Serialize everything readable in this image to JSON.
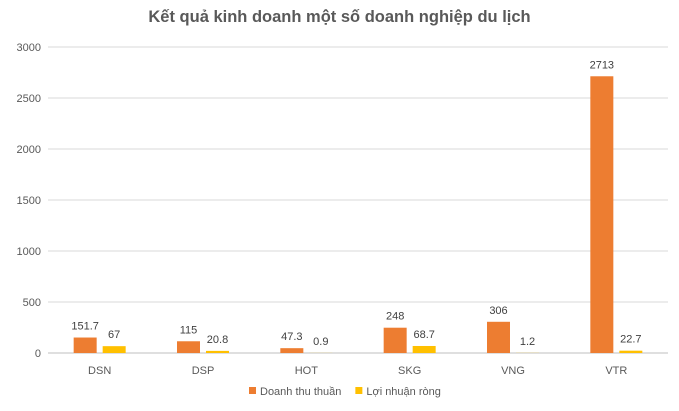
{
  "chart_data": {
    "type": "bar",
    "title": "Kết quả kinh doanh một số doanh nghiệp du lịch",
    "categories": [
      "DSN",
      "DSP",
      "HOT",
      "SKG",
      "VNG",
      "VTR"
    ],
    "series": [
      {
        "name": "Doanh thu thuần",
        "color": "#ED7D31",
        "values": [
          151.7,
          115,
          47.3,
          248,
          306,
          2713
        ],
        "labels": [
          "151.7",
          "115",
          "47.3",
          "248",
          "306",
          "2713"
        ]
      },
      {
        "name": "Lợi nhuận ròng",
        "color": "#FFC000",
        "values": [
          67,
          20.8,
          0.9,
          68.7,
          1.2,
          22.7
        ],
        "labels": [
          "67",
          "20.8",
          "0.9",
          "68.7",
          "1.2",
          "22.7"
        ]
      }
    ],
    "ylim": [
      0,
      3000
    ],
    "yticks": [
      0,
      500,
      1000,
      1500,
      2000,
      2500,
      3000
    ],
    "grid": true,
    "legend_position": "bottom"
  }
}
